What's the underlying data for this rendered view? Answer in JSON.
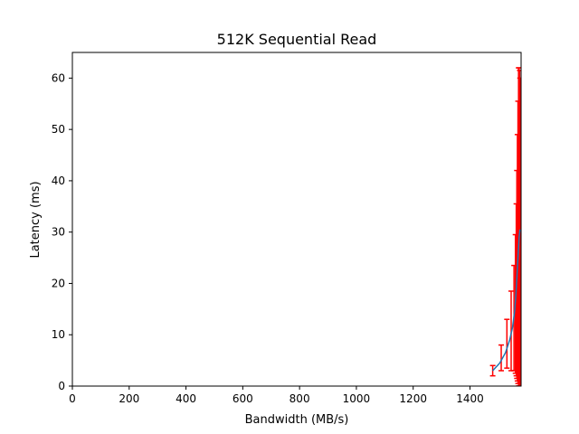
{
  "chart_data": {
    "type": "line",
    "title": "512K  Sequential Read",
    "xlabel": "Bandwidth (MB/s)",
    "ylabel": "Latency (ms)",
    "xlim": [
      0,
      1580
    ],
    "ylim": [
      0,
      65
    ],
    "xticks": [
      0,
      200,
      400,
      600,
      800,
      1000,
      1200,
      1400
    ],
    "yticks": [
      0,
      10,
      20,
      30,
      40,
      50,
      60
    ],
    "grid": false,
    "legend": "none",
    "colors": {
      "line": "#1f77b4",
      "errorbar": "#ff0000"
    },
    "series": [
      {
        "x": [
          1480,
          1505,
          1525,
          1540,
          1550,
          1557,
          1562,
          1565,
          1568,
          1570,
          1572,
          1573,
          1574,
          1575,
          1576
        ],
        "y": [
          3.0,
          4.5,
          6.5,
          9.0,
          11.5,
          14.5,
          18.0,
          21.0,
          24.0,
          26.0,
          28.0,
          29.0,
          29.5,
          30.0,
          30.5
        ]
      }
    ],
    "errorbars": [
      {
        "x": 1480,
        "lo": 2.0,
        "hi": 4.0
      },
      {
        "x": 1510,
        "lo": 3.0,
        "hi": 8.0
      },
      {
        "x": 1530,
        "lo": 3.5,
        "hi": 13.0
      },
      {
        "x": 1545,
        "lo": 3.0,
        "hi": 18.5
      },
      {
        "x": 1555,
        "lo": 3.0,
        "hi": 23.5
      },
      {
        "x": 1560,
        "lo": 2.5,
        "hi": 29.5
      },
      {
        "x": 1563,
        "lo": 2.0,
        "hi": 35.5
      },
      {
        "x": 1565,
        "lo": 1.5,
        "hi": 42.0
      },
      {
        "x": 1567,
        "lo": 1.0,
        "hi": 49.0
      },
      {
        "x": 1569,
        "lo": 0.5,
        "hi": 55.5
      },
      {
        "x": 1571,
        "lo": 0.0,
        "hi": 62.0
      },
      {
        "x": 1573,
        "lo": 0.0,
        "hi": 62.0
      },
      {
        "x": 1575,
        "lo": 0.0,
        "hi": 61.5
      },
      {
        "x": 1576,
        "lo": 0.0,
        "hi": 60.0
      }
    ]
  }
}
